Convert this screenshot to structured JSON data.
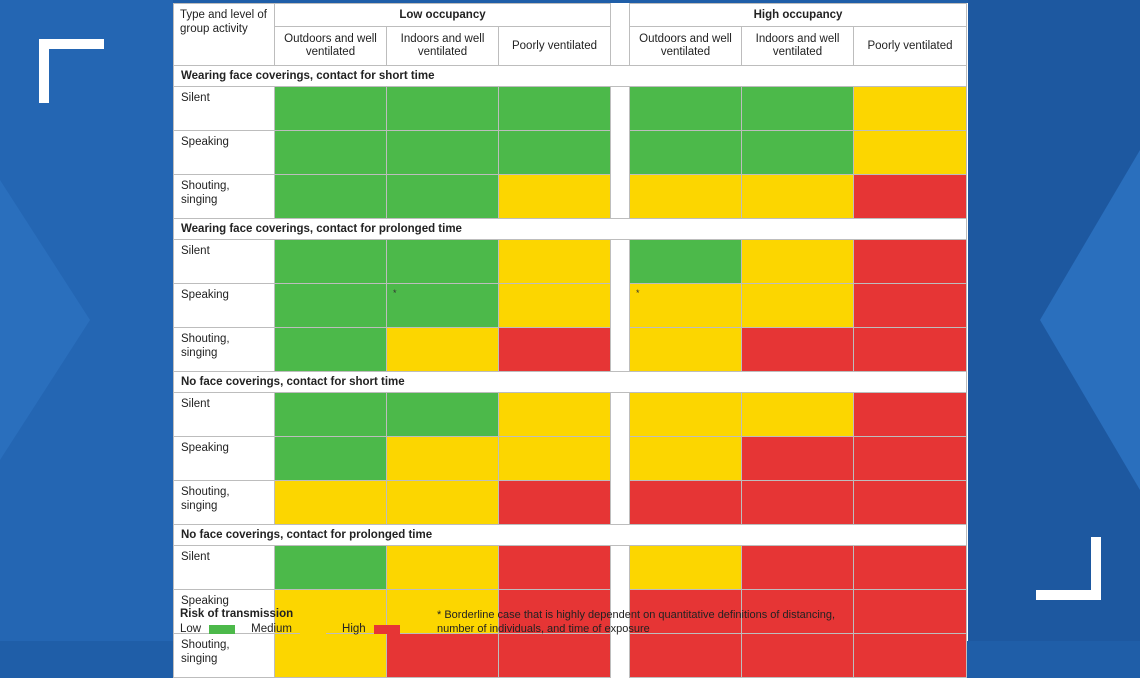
{
  "colors": {
    "low": "#4cb94a",
    "medium": "#fcd600",
    "high": "#e63535"
  },
  "header": {
    "corner_label": "Type and level of group activity",
    "groups": [
      "Low occupancy",
      "High occupancy"
    ],
    "columns": [
      "Outdoors and well ventilated",
      "Indoors and well ventilated",
      "Poorly ventilated"
    ]
  },
  "chart_data": {
    "type": "heatmap",
    "column_groups": [
      "Low occupancy",
      "High occupancy"
    ],
    "columns": [
      "Outdoors and well ventilated",
      "Indoors and well ventilated",
      "Poorly ventilated"
    ],
    "levels": [
      "Low",
      "Medium",
      "High"
    ],
    "sections": [
      {
        "title": "Wearing face coverings, contact for short time",
        "rows": [
          {
            "label": "Silent",
            "values": [
              "Low",
              "Low",
              "Low",
              "Low",
              "Low",
              "Medium"
            ],
            "stars": [
              false,
              false,
              false,
              false,
              false,
              false
            ]
          },
          {
            "label": "Speaking",
            "values": [
              "Low",
              "Low",
              "Low",
              "Low",
              "Low",
              "Medium"
            ],
            "stars": [
              false,
              false,
              false,
              false,
              false,
              false
            ]
          },
          {
            "label": "Shouting, singing",
            "values": [
              "Low",
              "Low",
              "Medium",
              "Medium",
              "Medium",
              "High"
            ],
            "stars": [
              false,
              false,
              false,
              false,
              false,
              false
            ]
          }
        ]
      },
      {
        "title": "Wearing face coverings, contact for prolonged time",
        "rows": [
          {
            "label": "Silent",
            "values": [
              "Low",
              "Low",
              "Medium",
              "Low",
              "Medium",
              "High"
            ],
            "stars": [
              false,
              false,
              false,
              false,
              false,
              false
            ]
          },
          {
            "label": "Speaking",
            "values": [
              "Low",
              "Low",
              "Medium",
              "Medium",
              "Medium",
              "High"
            ],
            "stars": [
              false,
              true,
              false,
              true,
              false,
              false
            ]
          },
          {
            "label": "Shouting, singing",
            "values": [
              "Low",
              "Medium",
              "High",
              "Medium",
              "High",
              "High"
            ],
            "stars": [
              false,
              false,
              false,
              false,
              false,
              false
            ]
          }
        ]
      },
      {
        "title": "No face coverings, contact for short time",
        "rows": [
          {
            "label": "Silent",
            "values": [
              "Low",
              "Low",
              "Medium",
              "Medium",
              "Medium",
              "High"
            ],
            "stars": [
              false,
              false,
              false,
              false,
              false,
              false
            ]
          },
          {
            "label": "Speaking",
            "values": [
              "Low",
              "Medium",
              "Medium",
              "Medium",
              "High",
              "High"
            ],
            "stars": [
              false,
              false,
              false,
              false,
              false,
              false
            ]
          },
          {
            "label": "Shouting, singing",
            "values": [
              "Medium",
              "Medium",
              "High",
              "High",
              "High",
              "High"
            ],
            "stars": [
              false,
              false,
              false,
              false,
              false,
              false
            ]
          }
        ]
      },
      {
        "title": "No face coverings, contact for prolonged time",
        "rows": [
          {
            "label": "Silent",
            "values": [
              "Low",
              "Medium",
              "High",
              "Medium",
              "High",
              "High"
            ],
            "stars": [
              false,
              false,
              false,
              false,
              false,
              false
            ]
          },
          {
            "label": "Speaking",
            "values": [
              "Medium",
              "Medium",
              "High",
              "High",
              "High",
              "High"
            ],
            "stars": [
              false,
              false,
              false,
              false,
              false,
              false
            ]
          },
          {
            "label": "Shouting, singing",
            "values": [
              "Medium",
              "High",
              "High",
              "High",
              "High",
              "High"
            ],
            "stars": [
              false,
              false,
              false,
              false,
              false,
              false
            ]
          }
        ]
      }
    ]
  },
  "legend": {
    "title": "Risk of transmission",
    "items": [
      {
        "label": "Low",
        "level": "Low"
      },
      {
        "label": "Medium",
        "level": "Medium"
      },
      {
        "label": "High",
        "level": "High"
      }
    ]
  },
  "footnote": {
    "marker": "*",
    "text": "* Borderline case that is highly dependent on quantitative definitions of distancing, number of individuals, and time of exposure"
  }
}
